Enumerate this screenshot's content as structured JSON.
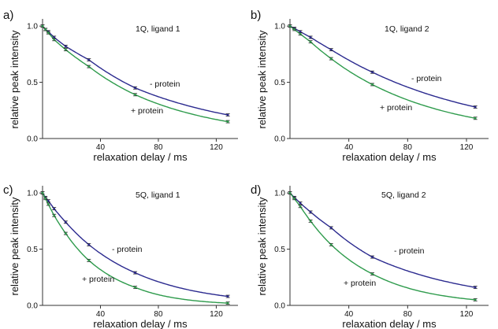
{
  "figure": {
    "panels": [
      {
        "letter": "a)",
        "title": "1Q, ligand 1",
        "xlabel": "relaxation delay / ms",
        "ylabel": "relative peak intensity",
        "annotations": [
          {
            "text": "- protein",
            "series": 0
          },
          {
            "text": "+ protein",
            "series": 1
          }
        ]
      },
      {
        "letter": "b)",
        "title": "1Q, ligand 2",
        "xlabel": "relaxation delay / ms",
        "ylabel": "relative peak intensity",
        "annotations": [
          {
            "text": "- protein",
            "series": 0
          },
          {
            "text": "+ protein",
            "series": 1
          }
        ]
      },
      {
        "letter": "c)",
        "title": "5Q, ligand 1",
        "xlabel": "relaxation delay / ms",
        "ylabel": "relative peak intensity",
        "annotations": [
          {
            "text": "- protein",
            "series": 0
          },
          {
            "text": "+ protein",
            "series": 1
          }
        ]
      },
      {
        "letter": "d)",
        "title": "5Q, ligand 2",
        "xlabel": "relaxation delay / ms",
        "ylabel": "relative peak intensity",
        "annotations": [
          {
            "text": "- protein",
            "series": 0
          },
          {
            "text": "+ protein",
            "series": 1
          }
        ]
      }
    ]
  },
  "colors": {
    "minus_protein": "#2b2a8f",
    "plus_protein": "#2e9b4c",
    "axis": "#333333",
    "error_bar": "#222222"
  },
  "chart_data": [
    {
      "type": "scatter",
      "title": "1Q, ligand 1",
      "xlabel": "relaxation delay / ms",
      "ylabel": "relative peak intensity",
      "xlim": [
        0,
        135
      ],
      "ylim": [
        0,
        1.05
      ],
      "xticks": [
        40,
        80,
        120
      ],
      "yticks": [
        0.0,
        0.5,
        1.0
      ],
      "grid": false,
      "series": [
        {
          "name": "- protein",
          "color": "#2b2a8f",
          "x": [
            0,
            2,
            4,
            8,
            16,
            32,
            64,
            128
          ],
          "y": [
            1.0,
            0.97,
            0.95,
            0.9,
            0.82,
            0.7,
            0.45,
            0.21
          ]
        },
        {
          "name": "+ protein",
          "color": "#2e9b4c",
          "x": [
            0,
            2,
            4,
            8,
            16,
            32,
            64,
            128
          ],
          "y": [
            1.0,
            0.97,
            0.94,
            0.88,
            0.79,
            0.64,
            0.39,
            0.15
          ]
        }
      ]
    },
    {
      "type": "scatter",
      "title": "1Q, ligand 2",
      "xlabel": "relaxation delay / ms",
      "ylabel": "relative peak intensity",
      "xlim": [
        0,
        135
      ],
      "ylim": [
        0,
        1.05
      ],
      "xticks": [
        40,
        80,
        120
      ],
      "yticks": [
        0.0,
        0.5,
        1.0
      ],
      "grid": false,
      "series": [
        {
          "name": "- protein",
          "color": "#2b2a8f",
          "x": [
            0,
            3,
            7,
            14,
            28,
            56,
            126
          ],
          "y": [
            1.0,
            0.98,
            0.95,
            0.9,
            0.79,
            0.59,
            0.28
          ]
        },
        {
          "name": "+ protein",
          "color": "#2e9b4c",
          "x": [
            0,
            3,
            7,
            14,
            28,
            56,
            126
          ],
          "y": [
            1.0,
            0.97,
            0.93,
            0.86,
            0.71,
            0.48,
            0.18
          ]
        }
      ]
    },
    {
      "type": "scatter",
      "title": "5Q, ligand 1",
      "xlabel": "relaxation delay / ms",
      "ylabel": "relative peak intensity",
      "xlim": [
        0,
        135
      ],
      "ylim": [
        0,
        1.05
      ],
      "xticks": [
        40,
        80,
        120
      ],
      "yticks": [
        0.0,
        0.5,
        1.0
      ],
      "grid": false,
      "series": [
        {
          "name": "- protein",
          "color": "#2b2a8f",
          "x": [
            0,
            2,
            4,
            8,
            16,
            32,
            64,
            128
          ],
          "y": [
            1.0,
            0.96,
            0.93,
            0.86,
            0.74,
            0.54,
            0.29,
            0.08
          ]
        },
        {
          "name": "+ protein",
          "color": "#2e9b4c",
          "x": [
            0,
            2,
            4,
            8,
            16,
            32,
            64,
            128
          ],
          "y": [
            1.0,
            0.95,
            0.9,
            0.8,
            0.64,
            0.4,
            0.16,
            0.02
          ]
        }
      ]
    },
    {
      "type": "scatter",
      "title": "5Q, ligand 2",
      "xlabel": "relaxation delay / ms",
      "ylabel": "relative peak intensity",
      "xlim": [
        0,
        135
      ],
      "ylim": [
        0,
        1.05
      ],
      "xticks": [
        40,
        80,
        120
      ],
      "yticks": [
        0.0,
        0.5,
        1.0
      ],
      "grid": false,
      "series": [
        {
          "name": "- protein",
          "color": "#2b2a8f",
          "x": [
            0,
            3,
            7,
            14,
            28,
            56,
            126
          ],
          "y": [
            1.0,
            0.96,
            0.91,
            0.83,
            0.69,
            0.43,
            0.16
          ]
        },
        {
          "name": "+ protein",
          "color": "#2e9b4c",
          "x": [
            0,
            3,
            7,
            14,
            28,
            56,
            126
          ],
          "y": [
            1.0,
            0.95,
            0.88,
            0.75,
            0.54,
            0.28,
            0.05
          ]
        }
      ]
    }
  ]
}
